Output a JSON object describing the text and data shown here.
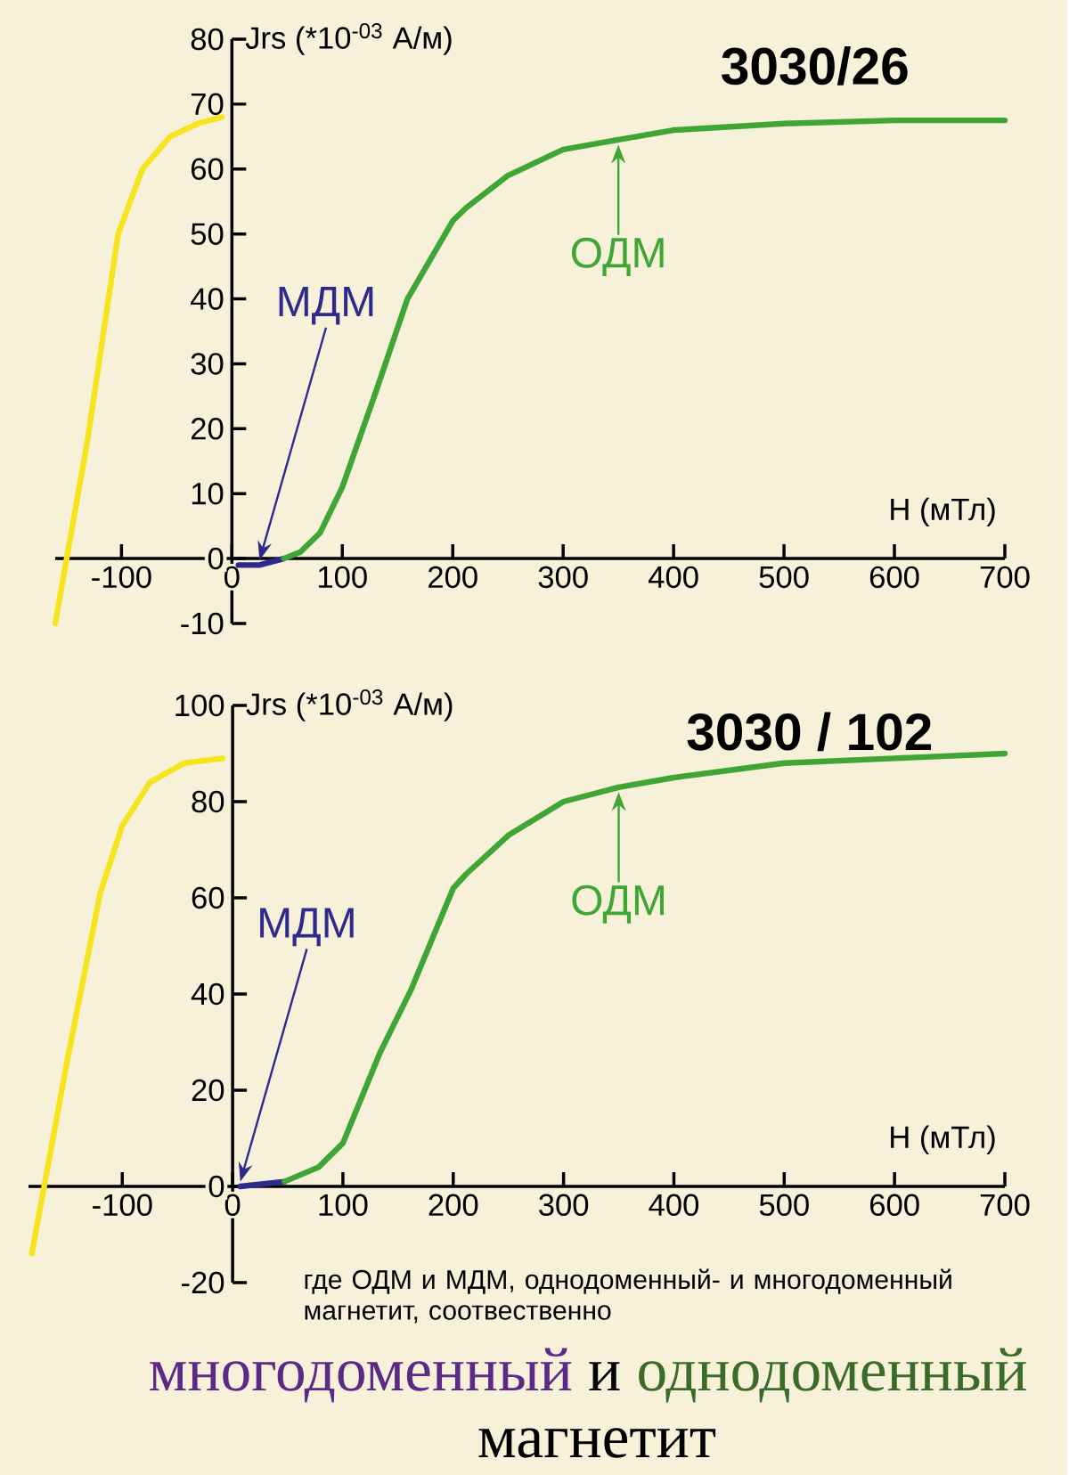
{
  "chart_data": [
    {
      "type": "line",
      "title": "3030/26",
      "xlabel": "H (мТл)",
      "ylabel": "Jrs (*10$^{-03}$ А/м)",
      "xlim": [
        -160,
        700
      ],
      "ylim": [
        -10,
        80
      ],
      "xticks": [
        -100,
        0,
        100,
        200,
        300,
        400,
        500,
        600,
        700
      ],
      "yticks": [
        -10,
        0,
        10,
        20,
        30,
        40,
        50,
        60,
        70,
        80
      ],
      "series": [
        {
          "color": "#f5e41e",
          "x": [
            -160,
            -131,
            -103,
            -81,
            -56,
            -31,
            -9
          ],
          "values": [
            -10,
            18,
            50,
            60,
            65,
            67,
            68
          ]
        },
        {
          "name": "МДМ",
          "color": "#2e2a8c",
          "x": [
            6,
            25,
            47
          ],
          "values": [
            -1,
            -1,
            0
          ]
        },
        {
          "name": "ОДМ",
          "color": "#3fa535",
          "x": [
            47,
            62,
            80,
            100,
            131,
            159,
            200,
            212,
            250,
            300,
            350,
            400,
            500,
            600,
            700
          ],
          "values": [
            0,
            1,
            4,
            11,
            26,
            40,
            52,
            54,
            59,
            63,
            64.5,
            66,
            67,
            67.5,
            67.5
          ]
        }
      ]
    },
    {
      "type": "line",
      "title": "3030 / 102",
      "xlabel": "H (мТл)",
      "ylabel": "Jrs (*10$^{-03}$ А/м)",
      "xlim": [
        -185,
        700
      ],
      "ylim": [
        -20,
        100
      ],
      "xticks": [
        -100,
        0,
        100,
        200,
        300,
        400,
        500,
        600,
        700
      ],
      "yticks": [
        -20,
        0,
        20,
        40,
        60,
        80,
        100
      ],
      "series": [
        {
          "color": "#f5e41e",
          "x": [
            -182,
            -150,
            -120,
            -100,
            -75,
            -44,
            -9
          ],
          "values": [
            -14,
            26,
            61,
            75,
            84,
            88,
            89
          ]
        },
        {
          "name": "МДМ",
          "color": "#2e2a8c",
          "x": [
            7,
            47
          ],
          "values": [
            0,
            1
          ]
        },
        {
          "name": "ОДМ",
          "color": "#3fa535",
          "x": [
            47,
            78,
            100,
            134,
            162,
            200,
            212,
            250,
            300,
            350,
            400,
            500,
            600,
            700
          ],
          "values": [
            1,
            4,
            9,
            28,
            41,
            62,
            65,
            73,
            80,
            83,
            85,
            88,
            89,
            90
          ]
        }
      ],
      "annotations": [
        "где ОДМ и МДМ, однодоменный- и многодоменный магнетит, соотвественно",
        "многодоменный",
        "и",
        "однодоменный",
        "магнетит"
      ]
    }
  ]
}
